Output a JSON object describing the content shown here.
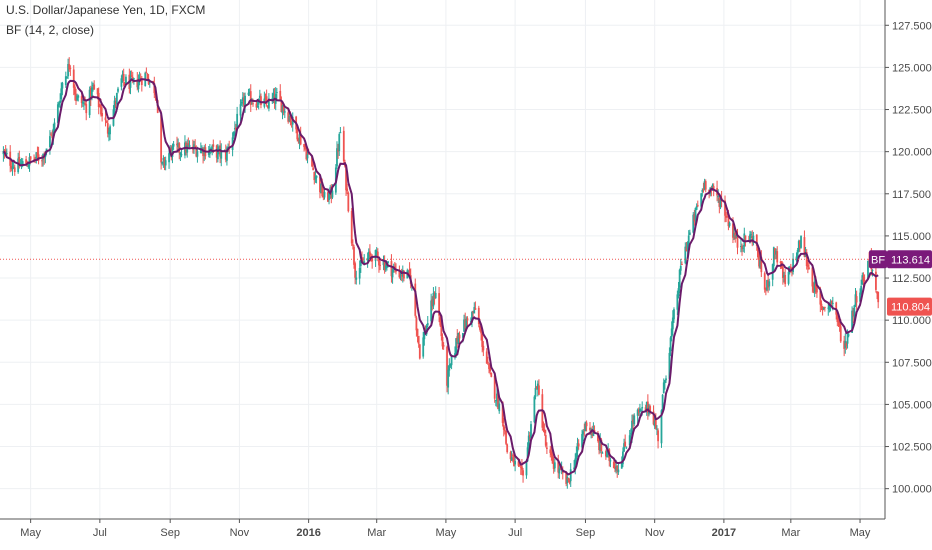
{
  "chart_data": {
    "type": "candlestick",
    "title": "U.S. Dollar/Japanese Yen, 1D, FXCM",
    "indicator_label": "BF (14, 2, close)",
    "x_ticks": [
      {
        "label": "May",
        "date": "2015-05-01",
        "bold": false
      },
      {
        "label": "Jul",
        "date": "2015-07-01",
        "bold": false
      },
      {
        "label": "Sep",
        "date": "2015-09-01",
        "bold": false
      },
      {
        "label": "Nov",
        "date": "2015-11-01",
        "bold": false
      },
      {
        "label": "2016",
        "date": "2016-01-01",
        "bold": true
      },
      {
        "label": "Mar",
        "date": "2016-03-01",
        "bold": false
      },
      {
        "label": "May",
        "date": "2016-05-01",
        "bold": false
      },
      {
        "label": "Jul",
        "date": "2016-07-01",
        "bold": false
      },
      {
        "label": "Sep",
        "date": "2016-09-01",
        "bold": false
      },
      {
        "label": "Nov",
        "date": "2016-11-01",
        "bold": false
      },
      {
        "label": "2017",
        "date": "2017-01-01",
        "bold": true
      },
      {
        "label": "Mar",
        "date": "2017-03-01",
        "bold": false
      },
      {
        "label": "May",
        "date": "2017-05-01",
        "bold": false
      }
    ],
    "y_ticks": [
      "100.000",
      "102.500",
      "105.000",
      "107.500",
      "110.000",
      "112.500",
      "115.000",
      "117.500",
      "120.000",
      "122.500",
      "125.000",
      "127.500"
    ],
    "ylim": [
      98.2,
      129.0
    ],
    "xlim": [
      "2015-04-04",
      "2017-05-23"
    ],
    "current_close": "110.804",
    "indicator_value": "113.614",
    "indicator_badge_text": "BF",
    "price_line_value": 113.614,
    "colors": {
      "up": "#26a69a",
      "down": "#ef5350",
      "indicator": "#6a1b6a",
      "badge_bf": "#7b1a7a",
      "badge_close": "#ef5350",
      "price_line": "#ef5350",
      "grid": "#eef0f3",
      "axis": "#555555"
    },
    "grid": true,
    "anchors": [
      [
        "2015-04-07",
        119.9
      ],
      [
        "2015-04-17",
        119.1
      ],
      [
        "2015-04-30",
        119.4
      ],
      [
        "2015-05-12",
        119.8
      ],
      [
        "2015-05-21",
        121.2
      ],
      [
        "2015-05-29",
        124.1
      ],
      [
        "2015-06-05",
        125.3
      ],
      [
        "2015-06-10",
        123.2
      ],
      [
        "2015-06-19",
        122.7
      ],
      [
        "2015-06-25",
        123.8
      ],
      [
        "2015-07-08",
        121.3
      ],
      [
        "2015-07-20",
        124.2
      ],
      [
        "2015-07-31",
        124.0
      ],
      [
        "2015-08-11",
        124.6
      ],
      [
        "2015-08-20",
        123.5
      ],
      [
        "2015-08-24",
        119.0
      ],
      [
        "2015-09-01",
        120.0
      ],
      [
        "2015-09-15",
        120.2
      ],
      [
        "2015-10-05",
        120.1
      ],
      [
        "2015-10-20",
        119.8
      ],
      [
        "2015-11-06",
        123.2
      ],
      [
        "2015-11-25",
        122.8
      ],
      [
        "2015-12-04",
        123.2
      ],
      [
        "2015-12-16",
        122.0
      ],
      [
        "2015-12-28",
        120.3
      ],
      [
        "2016-01-15",
        117.2
      ],
      [
        "2016-01-21",
        117.5
      ],
      [
        "2016-01-29",
        121.2
      ],
      [
        "2016-02-05",
        116.9
      ],
      [
        "2016-02-11",
        112.9
      ],
      [
        "2016-02-26",
        113.9
      ],
      [
        "2016-03-15",
        113.0
      ],
      [
        "2016-03-31",
        112.5
      ],
      [
        "2016-04-08",
        108.1
      ],
      [
        "2016-04-22",
        111.8
      ],
      [
        "2016-05-02",
        106.4
      ],
      [
        "2016-05-12",
        109.2
      ],
      [
        "2016-05-27",
        110.6
      ],
      [
        "2016-06-08",
        106.8
      ],
      [
        "2016-06-20",
        104.3
      ],
      [
        "2016-06-24",
        102.2
      ],
      [
        "2016-07-08",
        100.6
      ],
      [
        "2016-07-20",
        106.3
      ],
      [
        "2016-07-29",
        102.1
      ],
      [
        "2016-08-16",
        100.3
      ],
      [
        "2016-09-02",
        104.0
      ],
      [
        "2016-09-16",
        102.2
      ],
      [
        "2016-09-30",
        101.3
      ],
      [
        "2016-10-14",
        104.2
      ],
      [
        "2016-10-28",
        104.9
      ],
      [
        "2016-11-04",
        103.1
      ],
      [
        "2016-11-10",
        106.5
      ],
      [
        "2016-11-25",
        113.5
      ],
      [
        "2016-12-15",
        118.2
      ],
      [
        "2016-12-30",
        117.0
      ],
      [
        "2017-01-13",
        114.5
      ],
      [
        "2017-01-27",
        115.0
      ],
      [
        "2017-02-07",
        111.7
      ],
      [
        "2017-02-15",
        114.2
      ],
      [
        "2017-02-24",
        112.1
      ],
      [
        "2017-03-10",
        114.7
      ],
      [
        "2017-03-27",
        110.7
      ],
      [
        "2017-04-07",
        111.1
      ],
      [
        "2017-04-17",
        108.3
      ],
      [
        "2017-04-28",
        111.5
      ],
      [
        "2017-05-05",
        112.7
      ],
      [
        "2017-05-10",
        113.8
      ],
      [
        "2017-05-17",
        110.8
      ]
    ]
  }
}
